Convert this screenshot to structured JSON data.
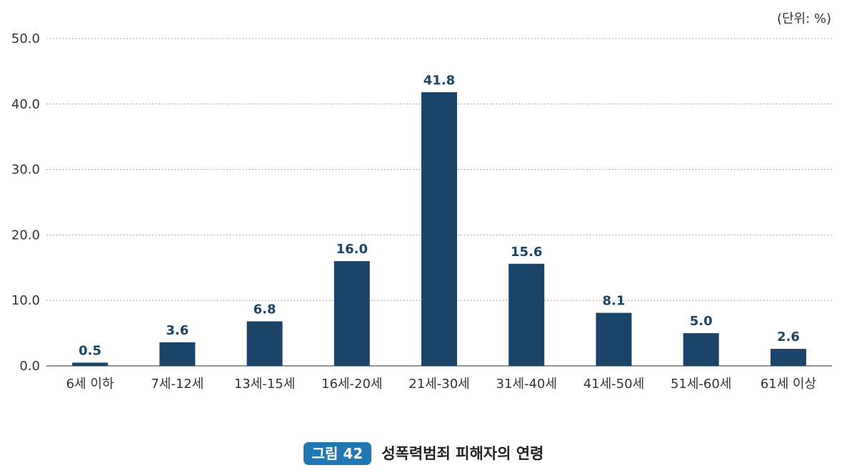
{
  "unit_label": "(단위: %)",
  "caption": {
    "badge": "그림 42",
    "title": "성폭력범죄 피해자의 연령"
  },
  "colors": {
    "bar": "#1a4568",
    "grid": "#888888",
    "axis": "#555555",
    "badge": "#1f78b4"
  },
  "chart_data": {
    "type": "bar",
    "categories": [
      "6세 이하",
      "7세-12세",
      "13세-15세",
      "16세-20세",
      "21세-30세",
      "31세-40세",
      "41세-50세",
      "51세-60세",
      "61세 이상"
    ],
    "values": [
      0.5,
      3.6,
      6.8,
      16.0,
      41.8,
      15.6,
      8.1,
      5.0,
      2.6
    ],
    "value_labels": [
      "0.5",
      "3.6",
      "6.8",
      "16.0",
      "41.8",
      "15.6",
      "8.1",
      "5.0",
      "2.6"
    ],
    "y_ticks": [
      "0.0",
      "10.0",
      "20.0",
      "30.0",
      "40.0",
      "50.0"
    ],
    "ylim": [
      0,
      50
    ],
    "grid": true,
    "legend": "none"
  }
}
